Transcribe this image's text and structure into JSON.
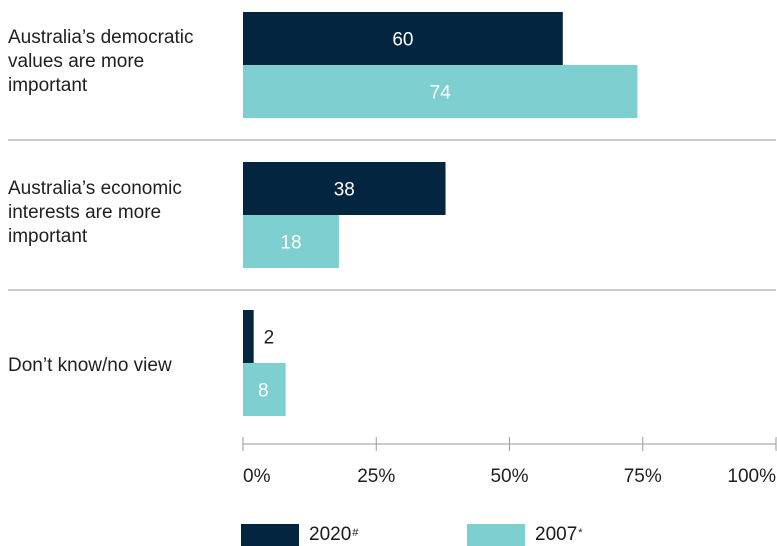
{
  "chart_data": {
    "type": "bar",
    "orientation": "horizontal",
    "categories": [
      "Australia’s democratic values are more important",
      "Australia’s economic interests are more important",
      "Don’t know/no view"
    ],
    "series": [
      {
        "name": "2020",
        "marker": "#",
        "color": "#03253f",
        "label_color": "#ffffff",
        "values": [
          60,
          38,
          2
        ]
      },
      {
        "name": "2007",
        "marker": "*",
        "color": "#7ecfd0",
        "label_color": "#ffffff",
        "values": [
          74,
          18,
          8
        ]
      }
    ],
    "xlim": [
      0,
      100
    ],
    "x_ticks": [
      "0%",
      "25%",
      "50%",
      "75%",
      "100%"
    ],
    "xlabel": "",
    "ylabel": "",
    "title": "",
    "legend_position": "bottom",
    "grid": false
  }
}
